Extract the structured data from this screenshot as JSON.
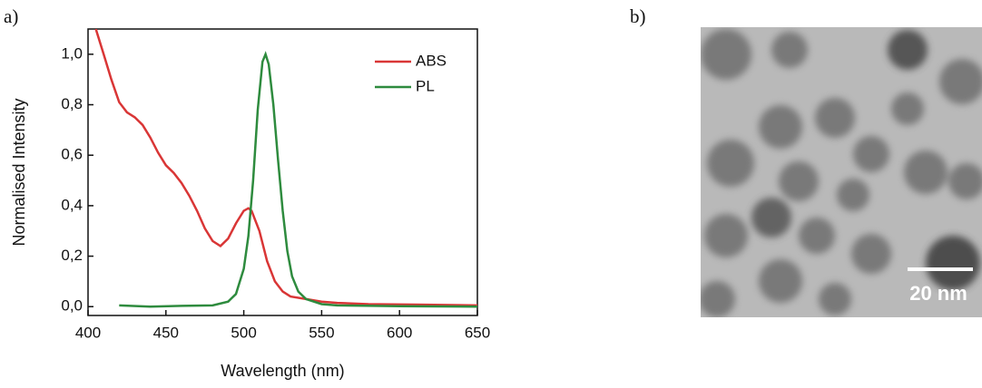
{
  "panel_labels": [
    "a)",
    "b)"
  ],
  "image": {
    "scale_bar_label": "20 nm"
  },
  "chart_data": {
    "type": "line",
    "xlabel": "Wavelength (nm)",
    "ylabel": "Normalised Intensity",
    "xlim": [
      400,
      650
    ],
    "ylim": [
      -0.035,
      1.1
    ],
    "xticks": [
      400,
      450,
      500,
      550,
      600,
      650
    ],
    "yticks": [
      {
        "value": 0,
        "label": "0,0"
      },
      {
        "value": 0.2,
        "label": "0,2"
      },
      {
        "value": 0.4,
        "label": "0,4"
      },
      {
        "value": 0.6,
        "label": "0,6"
      },
      {
        "value": 0.8,
        "label": "0,8"
      },
      {
        "value": 1,
        "label": "1,0"
      }
    ],
    "legend": "upper right",
    "series": [
      {
        "name": "ABS",
        "color": "#d93636",
        "x": [
          405,
          410,
          415,
          420,
          425,
          430,
          435,
          440,
          445,
          450,
          455,
          460,
          465,
          470,
          475,
          480,
          485,
          490,
          495,
          500,
          503,
          505,
          510,
          515,
          520,
          525,
          530,
          540,
          550,
          560,
          580,
          610,
          650
        ],
        "values": [
          1.1,
          1.0,
          0.9,
          0.81,
          0.77,
          0.75,
          0.72,
          0.67,
          0.61,
          0.56,
          0.53,
          0.49,
          0.44,
          0.38,
          0.31,
          0.26,
          0.24,
          0.27,
          0.33,
          0.38,
          0.39,
          0.38,
          0.3,
          0.18,
          0.1,
          0.06,
          0.04,
          0.03,
          0.02,
          0.015,
          0.01,
          0.008,
          0.005
        ]
      },
      {
        "name": "PL",
        "color": "#2e8b3e",
        "x": [
          420,
          440,
          460,
          480,
          490,
          495,
          500,
          503,
          506,
          509,
          512,
          514,
          516,
          519,
          522,
          525,
          528,
          531,
          535,
          540,
          550,
          560,
          600,
          650
        ],
        "values": [
          0.005,
          0.0,
          0.003,
          0.005,
          0.02,
          0.05,
          0.15,
          0.28,
          0.5,
          0.78,
          0.97,
          1.0,
          0.96,
          0.8,
          0.58,
          0.38,
          0.22,
          0.12,
          0.06,
          0.03,
          0.01,
          0.005,
          0.002,
          0.0
        ]
      }
    ]
  }
}
